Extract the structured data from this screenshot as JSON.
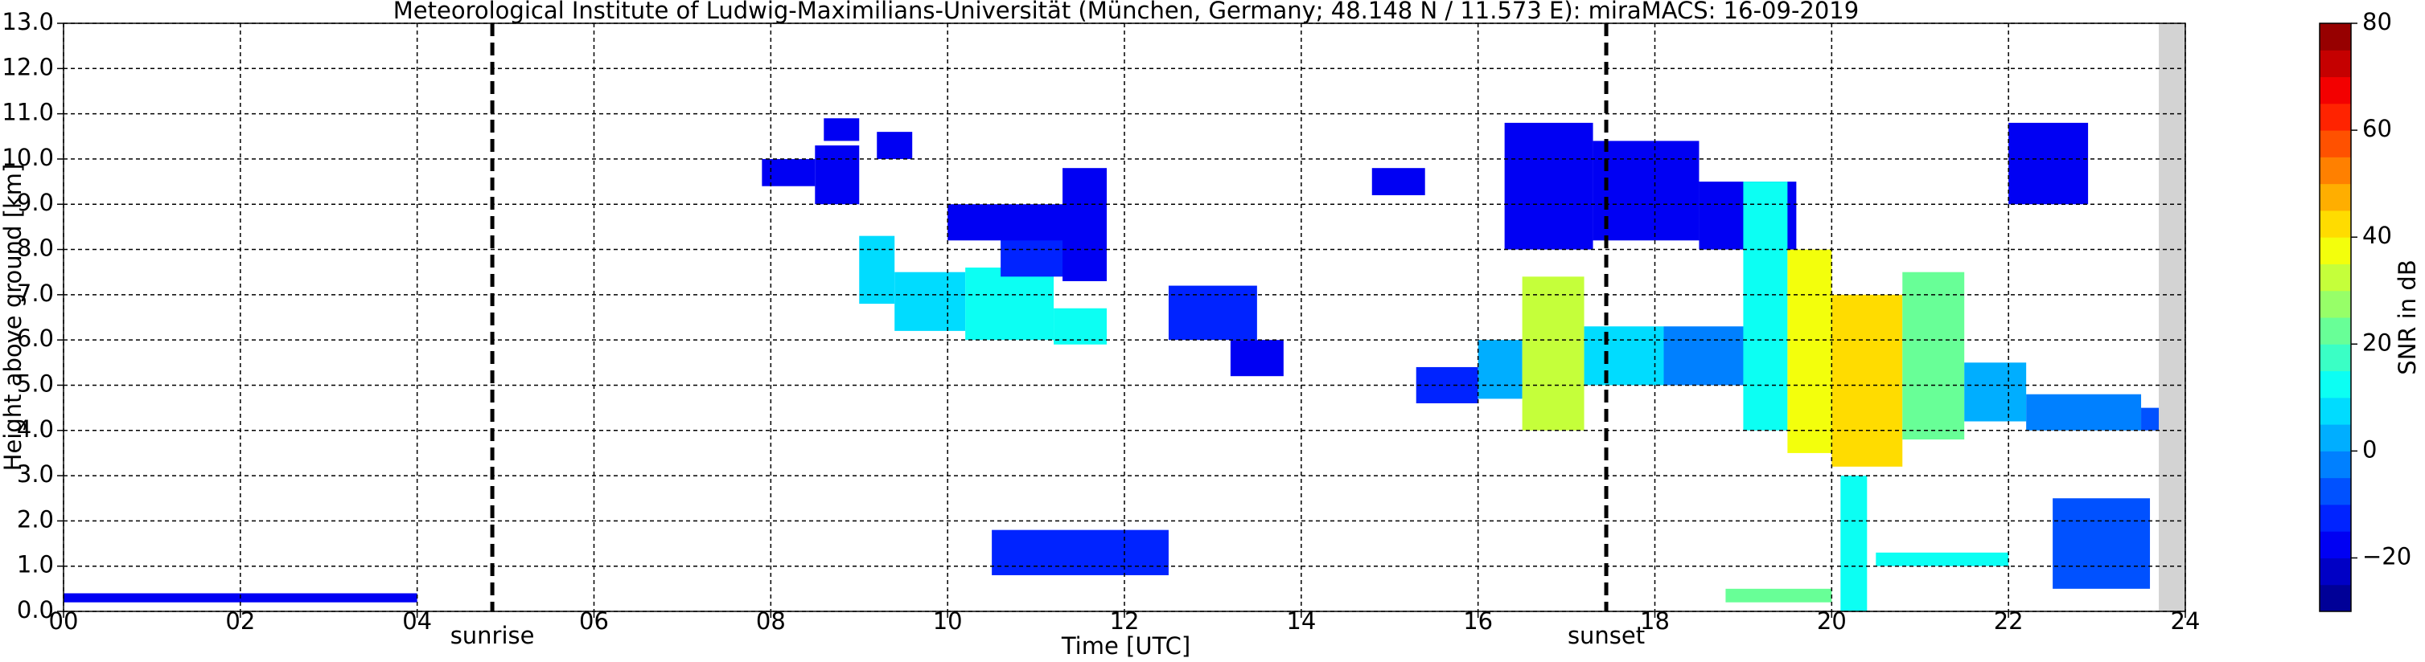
{
  "chart_data": {
    "type": "heatmap",
    "title": "Meteorological Institute of Ludwig-Maximilians-Universität (München, Germany; 48.148 N / 11.573 E):    miraMACS: 16-09-2019",
    "x_label": "Time [UTC]",
    "y_label": "Height above ground [km]",
    "xlim": [
      0,
      24
    ],
    "ylim": [
      0,
      13
    ],
    "xticks": [
      {
        "value": 0,
        "label": "00"
      },
      {
        "value": 2,
        "label": "02"
      },
      {
        "value": 4,
        "label": "04"
      },
      {
        "value": 6,
        "label": "06"
      },
      {
        "value": 8,
        "label": "08"
      },
      {
        "value": 10,
        "label": "10"
      },
      {
        "value": 12,
        "label": "12"
      },
      {
        "value": 14,
        "label": "14"
      },
      {
        "value": 16,
        "label": "16"
      },
      {
        "value": 18,
        "label": "18"
      },
      {
        "value": 20,
        "label": "20"
      },
      {
        "value": 22,
        "label": "22"
      },
      {
        "value": 24,
        "label": "24"
      }
    ],
    "yticks": [
      {
        "value": 0,
        "label": "0.0"
      },
      {
        "value": 1,
        "label": "1.0"
      },
      {
        "value": 2,
        "label": "2.0"
      },
      {
        "value": 3,
        "label": "3.0"
      },
      {
        "value": 4,
        "label": "4.0"
      },
      {
        "value": 5,
        "label": "5.0"
      },
      {
        "value": 6,
        "label": "6.0"
      },
      {
        "value": 7,
        "label": "7.0"
      },
      {
        "value": 8,
        "label": "8.0"
      },
      {
        "value": 9,
        "label": "9.0"
      },
      {
        "value": 10,
        "label": "10.0"
      },
      {
        "value": 11,
        "label": "11.0"
      },
      {
        "value": 12,
        "label": "12.0"
      },
      {
        "value": 13,
        "label": "13.0"
      }
    ],
    "grid": true,
    "no_data_x": [
      23.7,
      24
    ],
    "annotations": [
      {
        "text": "sunrise",
        "x": 4.85
      },
      {
        "text": "sunset",
        "x": 17.45
      }
    ],
    "colorbar": {
      "label": "SNR in dB",
      "lim": [
        -30,
        80
      ],
      "step": 5,
      "ticks": [
        {
          "value": -20,
          "label": "−20"
        },
        0,
        20,
        40,
        60,
        80
      ]
    },
    "cells": [
      [
        7.9,
        8.5,
        9.4,
        10.0,
        -20
      ],
      [
        8.5,
        9.0,
        9.0,
        10.3,
        -18
      ],
      [
        8.6,
        9.0,
        10.4,
        10.9,
        -20
      ],
      [
        9.2,
        9.6,
        10.0,
        10.6,
        -20
      ],
      [
        9.0,
        9.4,
        6.8,
        8.3,
        5
      ],
      [
        9.4,
        10.2,
        6.2,
        7.5,
        5
      ],
      [
        10.2,
        11.2,
        6.0,
        7.6,
        10
      ],
      [
        10.6,
        11.5,
        7.4,
        8.6,
        -15
      ],
      [
        11.2,
        11.8,
        5.9,
        6.7,
        10
      ],
      [
        11.3,
        11.8,
        7.3,
        9.8,
        -18
      ],
      [
        10.0,
        11.5,
        8.2,
        9.0,
        -20
      ],
      [
        12.5,
        13.5,
        6.0,
        7.2,
        -15
      ],
      [
        13.2,
        13.8,
        5.2,
        6.0,
        -20
      ],
      [
        14.8,
        15.4,
        9.2,
        9.8,
        -20
      ],
      [
        15.3,
        16.0,
        4.6,
        5.4,
        -15
      ],
      [
        16.0,
        16.5,
        4.7,
        6.0,
        0
      ],
      [
        16.5,
        17.2,
        4.0,
        7.4,
        30
      ],
      [
        17.2,
        18.1,
        5.0,
        6.3,
        5
      ],
      [
        18.1,
        19.3,
        5.0,
        6.3,
        -5
      ],
      [
        16.3,
        17.3,
        8.0,
        10.8,
        -20
      ],
      [
        17.3,
        18.5,
        8.2,
        10.4,
        -18
      ],
      [
        18.5,
        19.6,
        8.0,
        9.5,
        -20
      ],
      [
        19.0,
        19.5,
        4.0,
        9.5,
        10
      ],
      [
        19.5,
        20.0,
        3.5,
        8.0,
        35
      ],
      [
        20.0,
        20.8,
        3.2,
        7.0,
        40
      ],
      [
        20.8,
        21.5,
        3.8,
        7.5,
        20
      ],
      [
        21.5,
        22.2,
        4.2,
        5.5,
        0
      ],
      [
        22.2,
        23.5,
        4.0,
        4.8,
        -5
      ],
      [
        23.5,
        23.7,
        4.0,
        4.5,
        -10
      ],
      [
        22.0,
        22.9,
        9.0,
        10.8,
        -20
      ],
      [
        20.1,
        20.4,
        0.0,
        3.0,
        10
      ],
      [
        18.8,
        20.0,
        0.2,
        0.5,
        20
      ],
      [
        20.5,
        22.0,
        1.0,
        1.3,
        10
      ],
      [
        0.0,
        4.0,
        0.2,
        0.4,
        -20
      ],
      [
        10.5,
        12.5,
        0.8,
        1.8,
        -15
      ],
      [
        22.5,
        23.6,
        0.5,
        2.5,
        -10
      ]
    ]
  }
}
